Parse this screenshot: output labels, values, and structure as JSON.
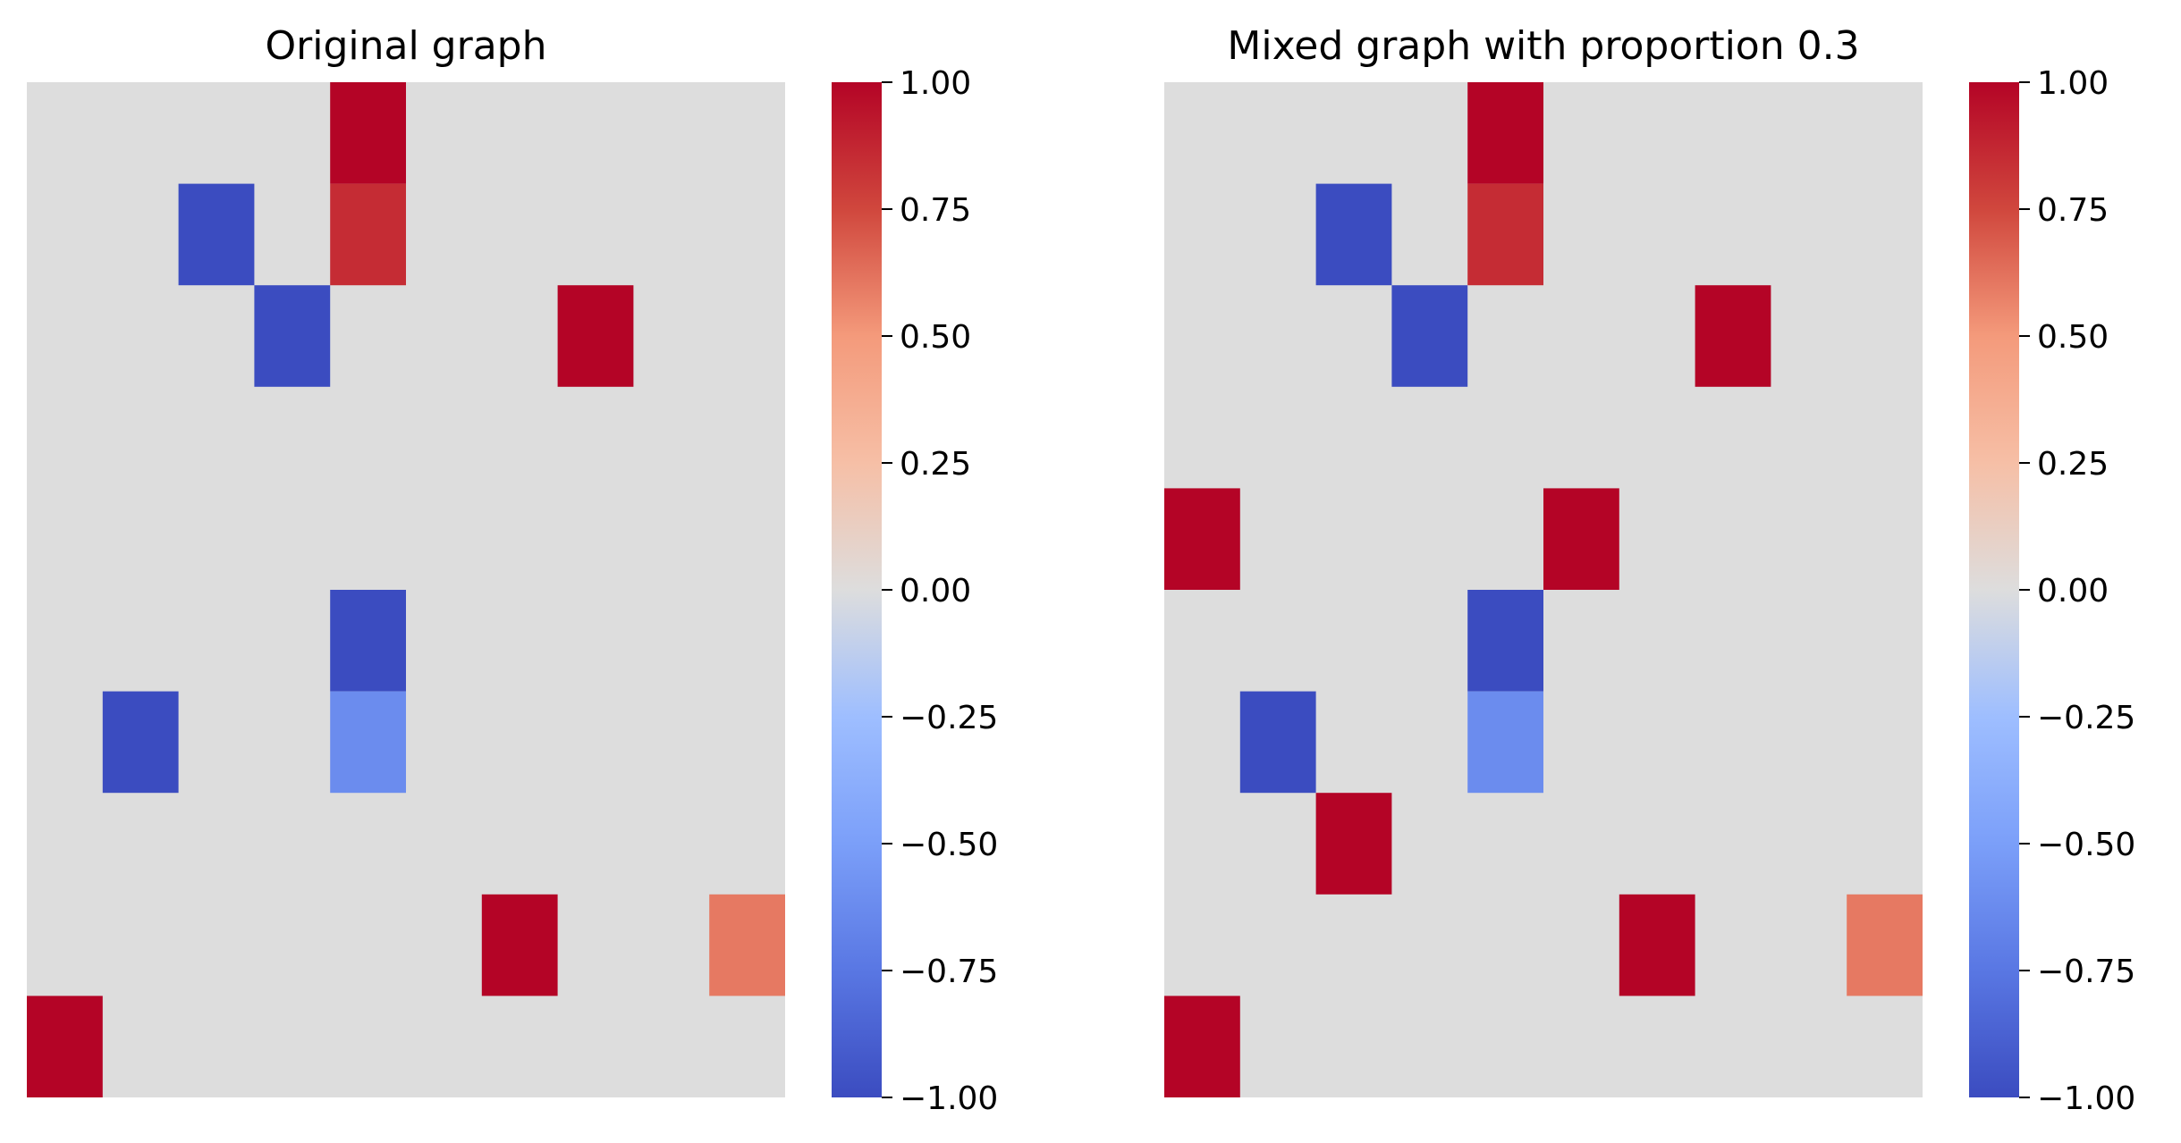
{
  "chart_data": [
    {
      "type": "heatmap",
      "title": "Original graph",
      "rows": 10,
      "cols": 10,
      "colormap": "coolwarm",
      "vmin": -1.0,
      "vmax": 1.0,
      "background": "#dddddd",
      "colorbar_ticks": [
        "1.00",
        "0.75",
        "0.50",
        "0.25",
        "0.00",
        "−0.25",
        "−0.50",
        "−0.75",
        "−1.00"
      ],
      "colorbar_tick_values": [
        1.0,
        0.75,
        0.5,
        0.25,
        0.0,
        -0.25,
        -0.5,
        -0.75,
        -1.0
      ],
      "cells": [
        {
          "row": 0,
          "col": 4,
          "value": 1.0
        },
        {
          "row": 1,
          "col": 2,
          "value": -1.0
        },
        {
          "row": 1,
          "col": 4,
          "value": 0.85
        },
        {
          "row": 2,
          "col": 3,
          "value": -1.0
        },
        {
          "row": 2,
          "col": 7,
          "value": 1.0
        },
        {
          "row": 5,
          "col": 4,
          "value": -1.0
        },
        {
          "row": 6,
          "col": 1,
          "value": -1.0
        },
        {
          "row": 6,
          "col": 4,
          "value": -0.62
        },
        {
          "row": 8,
          "col": 6,
          "value": 1.0
        },
        {
          "row": 8,
          "col": 9,
          "value": 0.6
        },
        {
          "row": 9,
          "col": 0,
          "value": 1.0
        }
      ]
    },
    {
      "type": "heatmap",
      "title": "Mixed graph with proportion 0.3",
      "rows": 10,
      "cols": 10,
      "colormap": "coolwarm",
      "vmin": -1.0,
      "vmax": 1.0,
      "background": "#dddddd",
      "colorbar_ticks": [
        "1.00",
        "0.75",
        "0.50",
        "0.25",
        "0.00",
        "−0.25",
        "−0.50",
        "−0.75",
        "−1.00"
      ],
      "colorbar_tick_values": [
        1.0,
        0.75,
        0.5,
        0.25,
        0.0,
        -0.25,
        -0.5,
        -0.75,
        -1.0
      ],
      "cells": [
        {
          "row": 0,
          "col": 4,
          "value": 1.0
        },
        {
          "row": 1,
          "col": 2,
          "value": -1.0
        },
        {
          "row": 1,
          "col": 4,
          "value": 0.85
        },
        {
          "row": 2,
          "col": 3,
          "value": -1.0
        },
        {
          "row": 2,
          "col": 7,
          "value": 1.0
        },
        {
          "row": 4,
          "col": 0,
          "value": 1.0
        },
        {
          "row": 4,
          "col": 5,
          "value": 1.0
        },
        {
          "row": 5,
          "col": 4,
          "value": -1.0
        },
        {
          "row": 6,
          "col": 1,
          "value": -1.0
        },
        {
          "row": 6,
          "col": 4,
          "value": -0.62
        },
        {
          "row": 7,
          "col": 2,
          "value": 1.0
        },
        {
          "row": 8,
          "col": 6,
          "value": 1.0
        },
        {
          "row": 8,
          "col": 9,
          "value": 0.6
        },
        {
          "row": 9,
          "col": 0,
          "value": 1.0
        }
      ]
    }
  ]
}
